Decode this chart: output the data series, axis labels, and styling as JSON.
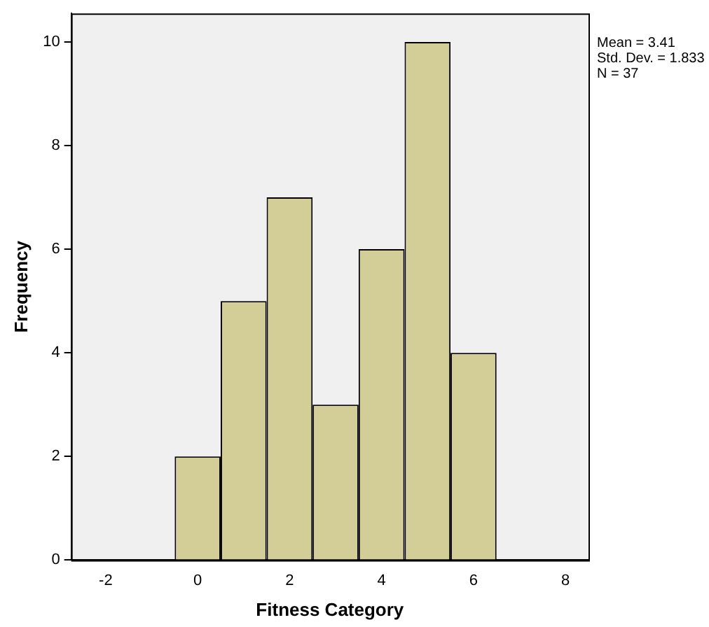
{
  "chart_data": {
    "type": "histogram",
    "xlabel": "Fitness Category",
    "ylabel": "Frequency",
    "bins": [
      -0.5,
      0.5,
      1.5,
      2.5,
      3.5,
      4.5,
      5.5,
      6.5
    ],
    "values": [
      2,
      5,
      7,
      3,
      6,
      10,
      4
    ],
    "color": "#d3ce97",
    "xlim": [
      -2.75,
      8.5
    ],
    "xticks": [
      -2,
      0,
      2,
      4,
      6,
      8
    ],
    "ylim": [
      0,
      10.55
    ],
    "yticks": [
      0,
      2,
      4,
      6,
      8,
      10
    ],
    "grid": false,
    "legend": false,
    "annotations": [
      "Mean = 3.41",
      "Std. Dev. = 1.833",
      "N = 37"
    ]
  }
}
